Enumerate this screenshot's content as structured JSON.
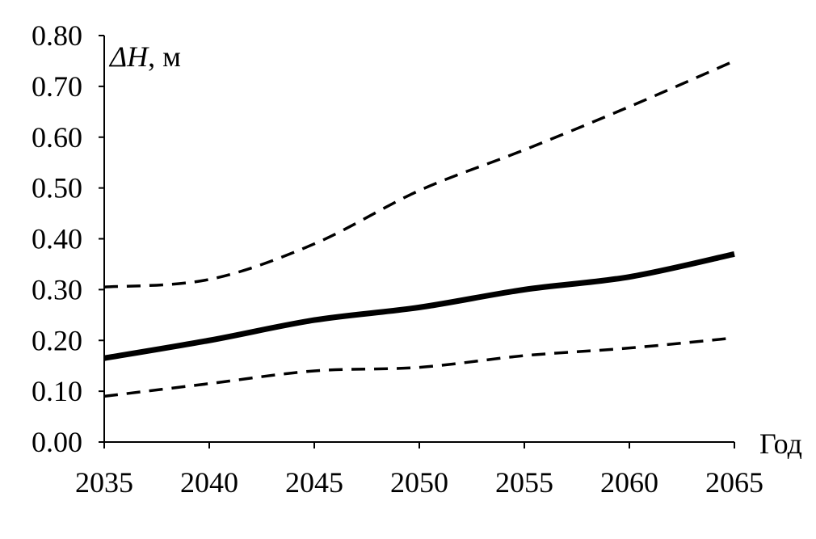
{
  "chart_data": {
    "type": "line",
    "title": "",
    "ylabel_symbol": "ΔH",
    "ylabel_unit": ", м",
    "xlabel": "Год",
    "x": [
      2035,
      2040,
      2045,
      2050,
      2055,
      2060,
      2065
    ],
    "xlim": [
      2035,
      2065
    ],
    "ylim": [
      0,
      0.8
    ],
    "y_ticks": [
      "0.00",
      "0.10",
      "0.20",
      "0.30",
      "0.40",
      "0.50",
      "0.60",
      "0.70",
      "0.80"
    ],
    "x_ticks": [
      "2035",
      "2040",
      "2045",
      "2050",
      "2055",
      "2060",
      "2065"
    ],
    "grid": false,
    "legend": "none",
    "series": [
      {
        "style": "solid",
        "values": [
          0.165,
          0.2,
          0.24,
          0.265,
          0.3,
          0.325,
          0.37
        ]
      },
      {
        "style": "dashed",
        "values": [
          0.305,
          0.32,
          0.39,
          0.495,
          0.575,
          0.66,
          0.75
        ]
      },
      {
        "style": "dashed",
        "values": [
          0.09,
          0.115,
          0.14,
          0.147,
          0.17,
          0.185,
          0.205
        ]
      }
    ],
    "colors": {
      "line": "#000000",
      "axis": "#000000"
    }
  }
}
